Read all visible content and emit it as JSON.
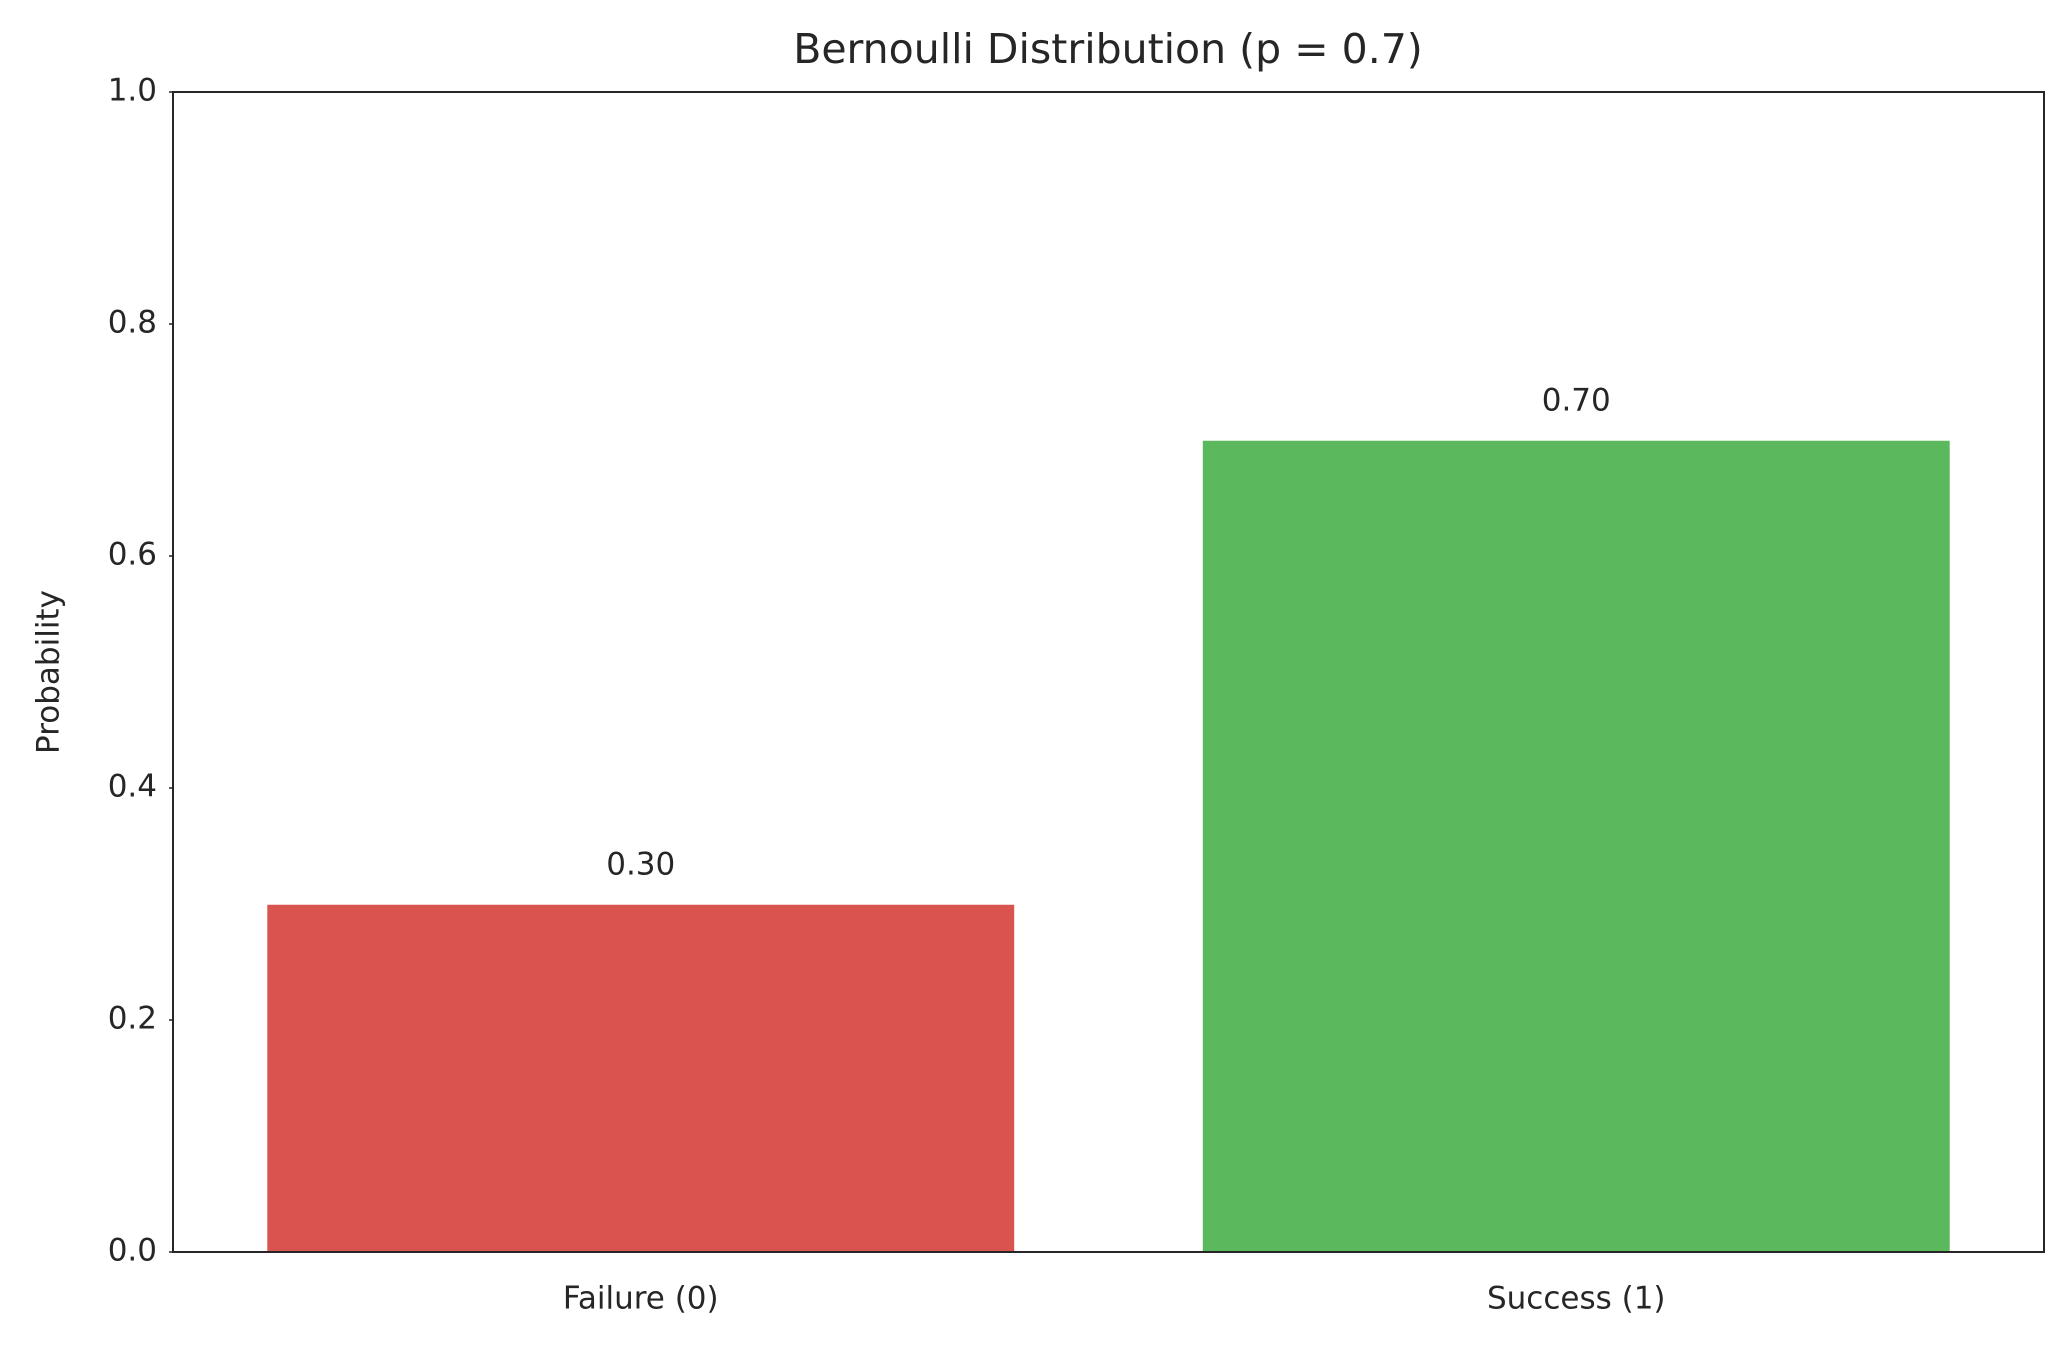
{
  "chart_data": {
    "type": "bar",
    "title": "Bernoulli Distribution (p = 0.7)",
    "y_label": "Probability",
    "categories": [
      "Failure (0)",
      "Success (1)"
    ],
    "values": [
      0.3,
      0.7
    ],
    "value_labels": [
      "0.30",
      "0.70"
    ],
    "colors": [
      "#d9534f",
      "#5cb85c"
    ],
    "ylim": [
      0,
      1
    ],
    "yticks": [
      {
        "value": 0,
        "label": "0.0"
      },
      0.2,
      0.4,
      0.6,
      0.8,
      {
        "value": 1,
        "label": "1.0"
      }
    ],
    "grid": false
  }
}
